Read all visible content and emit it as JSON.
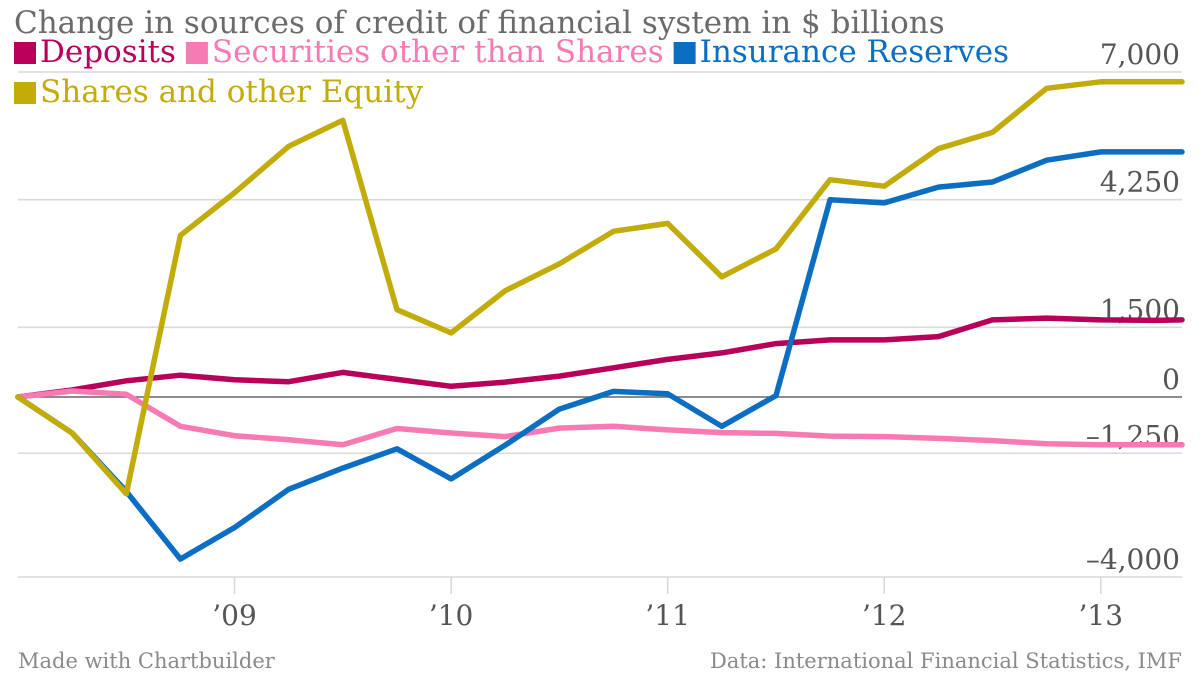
{
  "chart_data": {
    "type": "line",
    "title": "Change in sources of credit of financial system in $ billions",
    "footer_left": "Made with Chartbuilder",
    "footer_right": "Data: International Financial Statistics, IMF",
    "x_tick_labels": [
      "’09",
      "’10",
      "’11",
      "’12",
      "’13"
    ],
    "x_tick_values": [
      2009.0,
      2010.0,
      2011.0,
      2012.0,
      2013.0
    ],
    "x_range": [
      2008.0,
      2013.375
    ],
    "y_ticks": [
      7000,
      4250,
      1500,
      0,
      -1250,
      -4000
    ],
    "y_tick_labels": [
      "7,000",
      "4,250",
      "1,500",
      "0",
      "–1,250",
      "–4,000"
    ],
    "ylim": [
      -4000,
      7000
    ],
    "grid": true,
    "legend_position": "top-left",
    "x": [
      2008.0,
      2008.25,
      2008.5,
      2008.75,
      2009.0,
      2009.25,
      2009.5,
      2009.75,
      2010.0,
      2010.25,
      2010.5,
      2010.75,
      2011.0,
      2011.25,
      2011.5,
      2011.75,
      2012.0,
      2012.25,
      2012.5,
      2012.75,
      2013.0,
      2013.25,
      2013.375
    ],
    "series": [
      {
        "name": "Deposits",
        "color": "#b8005a",
        "values": [
          0,
          150,
          350,
          470,
          370,
          330,
          530,
          380,
          230,
          320,
          450,
          630,
          810,
          950,
          1150,
          1230,
          1230,
          1300,
          1660,
          1700,
          1660,
          1650,
          1660
        ]
      },
      {
        "name": "Securities other than Shares",
        "color": "#f77ab3",
        "values": [
          0,
          130,
          60,
          -650,
          -860,
          -950,
          -1060,
          -700,
          -800,
          -880,
          -690,
          -650,
          -730,
          -790,
          -810,
          -870,
          -880,
          -920,
          -970,
          -1040,
          -1060,
          -1060,
          -1060
        ]
      },
      {
        "name": "Insurance Reserves",
        "color": "#0b6ec2",
        "values": [
          0,
          -800,
          -2100,
          -3600,
          -2900,
          -2050,
          -1580,
          -1150,
          -1820,
          -1070,
          -270,
          120,
          70,
          -650,
          30,
          4250,
          4180,
          4520,
          4630,
          5100,
          5280,
          5280,
          5280
        ]
      },
      {
        "name": "Shares and other Equity",
        "color": "#c2ac0a",
        "values": [
          0,
          -800,
          -2150,
          3480,
          4400,
          5400,
          5960,
          1880,
          1380,
          2290,
          2870,
          3570,
          3740,
          2590,
          3190,
          4680,
          4540,
          5350,
          5700,
          6650,
          6790,
          6790,
          6790
        ]
      }
    ]
  }
}
